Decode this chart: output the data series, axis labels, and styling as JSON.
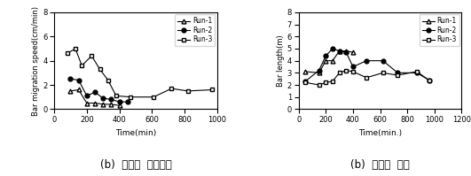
{
  "chart1": {
    "title": "(b)  사주의  이동속도",
    "xlabel": "Time(min)",
    "ylabel": "Bar migration speed(cm/min)",
    "xlim": [
      0,
      1000
    ],
    "ylim": [
      0,
      8
    ],
    "xticks": [
      0,
      200,
      400,
      600,
      800,
      1000
    ],
    "yticks": [
      0,
      2,
      4,
      6,
      8
    ],
    "run1": {
      "x": [
        100,
        150,
        200,
        250,
        300,
        350,
        400
      ],
      "y": [
        1.5,
        1.6,
        0.5,
        0.5,
        0.4,
        0.4,
        0.3
      ],
      "marker": "^",
      "filled": false,
      "color": "black"
    },
    "run2": {
      "x": [
        100,
        150,
        200,
        250,
        300,
        350,
        400,
        450
      ],
      "y": [
        2.5,
        2.4,
        1.1,
        1.4,
        0.9,
        0.8,
        0.6,
        0.6
      ],
      "marker": "o",
      "filled": true,
      "color": "black"
    },
    "run3": {
      "x": [
        80,
        130,
        170,
        230,
        280,
        330,
        380,
        470,
        610,
        720,
        820,
        970
      ],
      "y": [
        4.6,
        5.0,
        3.6,
        4.4,
        3.3,
        2.4,
        1.1,
        1.0,
        1.0,
        1.7,
        1.5,
        1.6
      ],
      "marker": "s",
      "filled": false,
      "color": "black"
    }
  },
  "chart2": {
    "title": "(b)  사주의  파장",
    "xlabel": "Time(min.)",
    "ylabel": "Bar length(m)",
    "xlim": [
      0,
      1200
    ],
    "ylim": [
      0,
      8
    ],
    "xticks": [
      0,
      200,
      400,
      600,
      800,
      1000,
      1200
    ],
    "yticks": [
      0,
      1,
      2,
      3,
      4,
      5,
      6,
      7,
      8
    ],
    "run1": {
      "x": [
        50,
        150,
        200,
        250,
        300,
        350,
        400
      ],
      "y": [
        3.1,
        3.0,
        4.0,
        4.0,
        4.8,
        4.8,
        4.7
      ],
      "marker": "^",
      "filled": false,
      "color": "black"
    },
    "run2": {
      "x": [
        50,
        150,
        200,
        250,
        300,
        350,
        400,
        500,
        620,
        730,
        870,
        960
      ],
      "y": [
        2.3,
        3.2,
        4.4,
        5.0,
        4.8,
        4.7,
        3.5,
        4.0,
        4.0,
        3.0,
        3.0,
        2.4
      ],
      "marker": "o",
      "filled": true,
      "color": "black"
    },
    "run3": {
      "x": [
        50,
        150,
        200,
        250,
        300,
        350,
        400,
        500,
        620,
        730,
        870,
        960
      ],
      "y": [
        2.2,
        2.0,
        2.2,
        2.3,
        3.0,
        3.2,
        3.1,
        2.6,
        3.0,
        2.8,
        3.1,
        2.4
      ],
      "marker": "s",
      "filled": false,
      "color": "black"
    }
  }
}
